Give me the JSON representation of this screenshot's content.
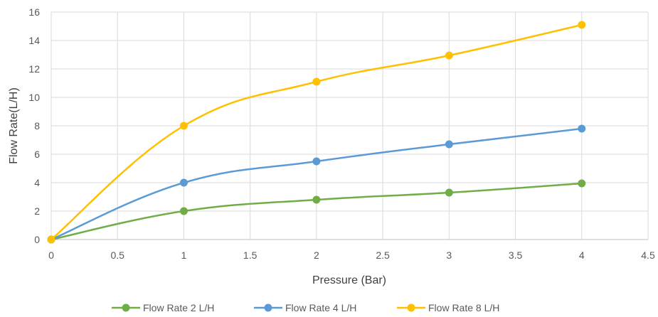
{
  "chart_data": {
    "type": "scatter",
    "title": "",
    "xlabel": "Pressure (Bar)",
    "ylabel": "Flow Rate(L/H)",
    "xlim": [
      0,
      4.5
    ],
    "ylim": [
      0,
      16
    ],
    "xticks": [
      "0",
      "0.5",
      "1",
      "1.5",
      "2",
      "2.5",
      "3",
      "3.5",
      "4",
      "4.5"
    ],
    "yticks": [
      "0",
      "2",
      "4",
      "6",
      "8",
      "10",
      "12",
      "14",
      "16"
    ],
    "grid": true,
    "smooth_lines": true,
    "legend_position": "bottom",
    "x": [
      0,
      1,
      2,
      3,
      4
    ],
    "series": [
      {
        "name": "Flow Rate 2 L/H",
        "color": "#70AD47",
        "values": [
          0,
          2,
          2.8,
          3.3,
          3.95
        ]
      },
      {
        "name": "Flow Rate 4 L/H",
        "color": "#5B9BD5",
        "values": [
          0,
          4,
          5.5,
          6.7,
          7.8
        ]
      },
      {
        "name": "Flow Rate 8 L/H",
        "color": "#FFC000",
        "values": [
          0,
          8,
          11.1,
          12.95,
          15.1
        ]
      }
    ]
  }
}
